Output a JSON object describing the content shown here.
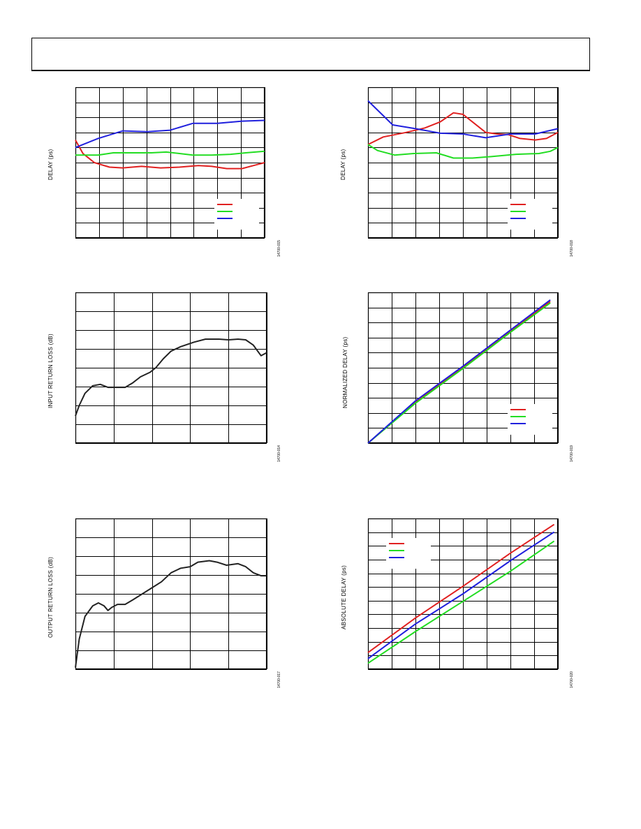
{
  "page": {
    "header_text": ""
  },
  "chart_data": [
    {
      "id": "c1",
      "type": "line",
      "ylabel": "DELAY (ps)",
      "figure_id": "14700-015",
      "gridCols": 8,
      "gridRows": 10,
      "series": [
        {
          "color": "#e02020",
          "points": [
            [
              0,
              0.65
            ],
            [
              0.04,
              0.56
            ],
            [
              0.1,
              0.5
            ],
            [
              0.18,
              0.47
            ],
            [
              0.25,
              0.465
            ],
            [
              0.35,
              0.475
            ],
            [
              0.45,
              0.465
            ],
            [
              0.55,
              0.47
            ],
            [
              0.65,
              0.48
            ],
            [
              0.72,
              0.475
            ],
            [
              0.8,
              0.46
            ],
            [
              0.88,
              0.46
            ],
            [
              0.94,
              0.48
            ],
            [
              1,
              0.5
            ]
          ]
        },
        {
          "color": "#22dd22",
          "points": [
            [
              0,
              0.55
            ],
            [
              0.12,
              0.55
            ],
            [
              0.2,
              0.565
            ],
            [
              0.3,
              0.565
            ],
            [
              0.4,
              0.565
            ],
            [
              0.48,
              0.57
            ],
            [
              0.55,
              0.56
            ],
            [
              0.62,
              0.55
            ],
            [
              0.72,
              0.55
            ],
            [
              0.82,
              0.555
            ],
            [
              0.9,
              0.565
            ],
            [
              1,
              0.575
            ]
          ]
        },
        {
          "color": "#2020dd",
          "points": [
            [
              0,
              0.6
            ],
            [
              0.12,
              0.66
            ],
            [
              0.25,
              0.71
            ],
            [
              0.38,
              0.705
            ],
            [
              0.5,
              0.715
            ],
            [
              0.62,
              0.76
            ],
            [
              0.75,
              0.76
            ],
            [
              0.88,
              0.775
            ],
            [
              1,
              0.78
            ]
          ]
        }
      ],
      "legend": {
        "position": "bottom-right",
        "entries": [
          "",
          "",
          ""
        ]
      }
    },
    {
      "id": "c2",
      "type": "line",
      "ylabel": "DELAY (ps)",
      "figure_id": "14700-018",
      "gridCols": 8,
      "gridRows": 10,
      "series": [
        {
          "color": "#e02020",
          "points": [
            [
              0,
              0.62
            ],
            [
              0.08,
              0.67
            ],
            [
              0.2,
              0.7
            ],
            [
              0.3,
              0.73
            ],
            [
              0.38,
              0.77
            ],
            [
              0.45,
              0.83
            ],
            [
              0.5,
              0.82
            ],
            [
              0.56,
              0.76
            ],
            [
              0.62,
              0.7
            ],
            [
              0.68,
              0.69
            ],
            [
              0.74,
              0.685
            ],
            [
              0.8,
              0.66
            ],
            [
              0.88,
              0.65
            ],
            [
              0.94,
              0.66
            ],
            [
              1,
              0.7
            ]
          ]
        },
        {
          "color": "#22dd22",
          "points": [
            [
              0,
              0.62
            ],
            [
              0.05,
              0.58
            ],
            [
              0.14,
              0.55
            ],
            [
              0.24,
              0.56
            ],
            [
              0.36,
              0.565
            ],
            [
              0.45,
              0.53
            ],
            [
              0.55,
              0.53
            ],
            [
              0.65,
              0.54
            ],
            [
              0.78,
              0.555
            ],
            [
              0.9,
              0.56
            ],
            [
              0.96,
              0.575
            ],
            [
              1,
              0.6
            ]
          ]
        },
        {
          "color": "#2020dd",
          "points": [
            [
              0,
              0.91
            ],
            [
              0.13,
              0.75
            ],
            [
              0.25,
              0.725
            ],
            [
              0.38,
              0.695
            ],
            [
              0.5,
              0.69
            ],
            [
              0.62,
              0.665
            ],
            [
              0.75,
              0.69
            ],
            [
              0.88,
              0.69
            ],
            [
              1,
              0.725
            ]
          ]
        }
      ],
      "legend": {
        "position": "bottom-right",
        "entries": [
          "",
          "",
          ""
        ]
      }
    },
    {
      "id": "c3",
      "type": "line",
      "ylabel": "INPUT RETURN LOSS (dB)",
      "figure_id": "14700-014",
      "gridCols": 5,
      "gridRows": 8,
      "series": [
        {
          "color": "#222222",
          "points": [
            [
              0,
              0.18
            ],
            [
              0.02,
              0.25
            ],
            [
              0.05,
              0.33
            ],
            [
              0.09,
              0.38
            ],
            [
              0.13,
              0.39
            ],
            [
              0.17,
              0.37
            ],
            [
              0.21,
              0.37
            ],
            [
              0.26,
              0.37
            ],
            [
              0.3,
              0.4
            ],
            [
              0.34,
              0.44
            ],
            [
              0.39,
              0.47
            ],
            [
              0.42,
              0.5
            ],
            [
              0.46,
              0.56
            ],
            [
              0.5,
              0.61
            ],
            [
              0.55,
              0.64
            ],
            [
              0.62,
              0.67
            ],
            [
              0.68,
              0.69
            ],
            [
              0.75,
              0.69
            ],
            [
              0.8,
              0.685
            ],
            [
              0.85,
              0.69
            ],
            [
              0.89,
              0.685
            ],
            [
              0.93,
              0.65
            ],
            [
              0.97,
              0.58
            ],
            [
              1,
              0.6
            ]
          ]
        }
      ],
      "legend": null
    },
    {
      "id": "c4",
      "type": "line",
      "ylabel": "NORMALIZED DELAY (ps)",
      "figure_id": "14700-019",
      "gridCols": 8,
      "gridRows": 10,
      "series": [
        {
          "color": "#e02020",
          "points": [
            [
              0,
              0
            ],
            [
              0.25,
              0.27
            ],
            [
              0.5,
              0.5
            ],
            [
              0.75,
              0.74
            ],
            [
              0.96,
              0.94
            ]
          ]
        },
        {
          "color": "#22dd22",
          "points": [
            [
              0,
              0
            ],
            [
              0.25,
              0.265
            ],
            [
              0.5,
              0.495
            ],
            [
              0.75,
              0.735
            ],
            [
              0.96,
              0.93
            ]
          ]
        },
        {
          "color": "#2020dd",
          "points": [
            [
              0,
              0
            ],
            [
              0.25,
              0.28
            ],
            [
              0.5,
              0.51
            ],
            [
              0.75,
              0.75
            ],
            [
              0.96,
              0.95
            ]
          ]
        }
      ],
      "legend": {
        "position": "bottom-right",
        "entries": [
          "",
          "",
          ""
        ]
      }
    },
    {
      "id": "c5",
      "type": "line",
      "ylabel": "OUTPUT RETURN LOSS (dB)",
      "figure_id": "14700-017",
      "gridCols": 5,
      "gridRows": 8,
      "series": [
        {
          "color": "#222222",
          "points": [
            [
              0,
              0.01
            ],
            [
              0.02,
              0.2
            ],
            [
              0.05,
              0.35
            ],
            [
              0.09,
              0.42
            ],
            [
              0.12,
              0.44
            ],
            [
              0.15,
              0.42
            ],
            [
              0.17,
              0.39
            ],
            [
              0.19,
              0.41
            ],
            [
              0.22,
              0.43
            ],
            [
              0.26,
              0.43
            ],
            [
              0.3,
              0.46
            ],
            [
              0.35,
              0.5
            ],
            [
              0.4,
              0.54
            ],
            [
              0.45,
              0.58
            ],
            [
              0.5,
              0.64
            ],
            [
              0.55,
              0.67
            ],
            [
              0.6,
              0.68
            ],
            [
              0.64,
              0.71
            ],
            [
              0.7,
              0.72
            ],
            [
              0.74,
              0.71
            ],
            [
              0.79,
              0.69
            ],
            [
              0.85,
              0.7
            ],
            [
              0.89,
              0.68
            ],
            [
              0.93,
              0.64
            ],
            [
              0.97,
              0.62
            ],
            [
              1,
              0.62
            ]
          ]
        }
      ],
      "legend": null
    },
    {
      "id": "c6",
      "type": "line",
      "ylabel": "ABSOLUTE DELAY (ps)",
      "figure_id": "14700-020",
      "gridCols": 8,
      "gridRows": 11,
      "series": [
        {
          "color": "#e02020",
          "points": [
            [
              0,
              0.11
            ],
            [
              0.25,
              0.34
            ],
            [
              0.5,
              0.55
            ],
            [
              0.75,
              0.77
            ],
            [
              0.98,
              0.96
            ]
          ]
        },
        {
          "color": "#22dd22",
          "points": [
            [
              0,
              0.04
            ],
            [
              0.25,
              0.25
            ],
            [
              0.5,
              0.45
            ],
            [
              0.75,
              0.65
            ],
            [
              0.98,
              0.85
            ]
          ]
        },
        {
          "color": "#2020dd",
          "points": [
            [
              0,
              0.07
            ],
            [
              0.25,
              0.3
            ],
            [
              0.5,
              0.5
            ],
            [
              0.75,
              0.72
            ],
            [
              0.98,
              0.91
            ]
          ]
        }
      ],
      "legend": {
        "position": "top-left",
        "entries": [
          "",
          "",
          ""
        ]
      }
    }
  ]
}
